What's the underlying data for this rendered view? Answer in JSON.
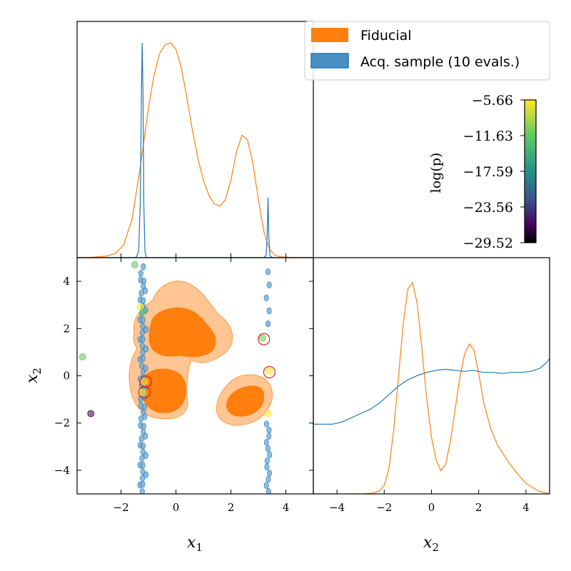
{
  "legend": {
    "items": [
      {
        "label": "Fiducial",
        "color": "#ff7f0e"
      },
      {
        "label": "Acq. sample (10 evals.)",
        "color": "#1f77b4"
      }
    ]
  },
  "colorbar": {
    "label": "log(p)",
    "ticks": [
      "−5.66",
      "−11.63",
      "−17.59",
      "−23.56",
      "−29.52"
    ],
    "range": [
      -29.52,
      -5.66
    ],
    "colormap": "viridis"
  },
  "chart_data": [
    {
      "type": "line",
      "panel": "marginal-x1",
      "xlim": [
        -3.6,
        5.0
      ],
      "series": [
        {
          "name": "Fiducial",
          "color": "#ff7f0e",
          "x": [
            -3.6,
            -3.0,
            -2.5,
            -2.2,
            -1.9,
            -1.6,
            -1.3,
            -1.0,
            -0.8,
            -0.6,
            -0.4,
            -0.2,
            0.0,
            0.2,
            0.4,
            0.6,
            0.8,
            1.0,
            1.2,
            1.4,
            1.6,
            1.8,
            2.0,
            2.2,
            2.4,
            2.6,
            2.8,
            3.0,
            3.2,
            3.4,
            3.6,
            3.8,
            4.2,
            5.0
          ],
          "y": [
            0.0,
            0.002,
            0.008,
            0.02,
            0.06,
            0.18,
            0.42,
            0.7,
            0.85,
            0.95,
            0.99,
            1.0,
            0.97,
            0.88,
            0.74,
            0.59,
            0.46,
            0.36,
            0.29,
            0.25,
            0.24,
            0.27,
            0.36,
            0.49,
            0.57,
            0.55,
            0.44,
            0.27,
            0.12,
            0.04,
            0.012,
            0.004,
            0.001,
            0.0
          ]
        },
        {
          "name": "Acq. sample (10 evals.)",
          "color": "#1f77b4",
          "x": [
            -3.6,
            -1.45,
            -1.36,
            -1.3,
            -1.26,
            -1.23,
            -1.2,
            -1.17,
            -1.13,
            -1.08,
            -1.0,
            3.2,
            3.28,
            3.32,
            3.35,
            3.38,
            3.42,
            3.5,
            5.0
          ],
          "y": [
            0.0,
            0.0,
            0.03,
            0.25,
            0.75,
            1.0,
            0.75,
            0.25,
            0.03,
            0.0,
            0.0,
            0.0,
            0.01,
            0.1,
            0.28,
            0.1,
            0.01,
            0.0,
            0.0
          ]
        }
      ]
    },
    {
      "type": "scatter",
      "panel": "joint-x1-x2",
      "xlabel": "x₁",
      "ylabel": "x₂",
      "xlim": [
        -3.6,
        5.0
      ],
      "ylim": [
        -5.0,
        5.0
      ],
      "xticks": [
        "−2",
        "0",
        "2",
        "4"
      ],
      "yticks": [
        "−4",
        "−2",
        "0",
        "2",
        "4"
      ],
      "fiducial_contours": [
        {
          "level": "outer",
          "x": [
            -1.5,
            -1.2,
            -0.5,
            0.3,
            1.0,
            1.7,
            2.2,
            2.7,
            3.3,
            3.8,
            3.9,
            3.7,
            3.2,
            2.5,
            1.8,
            1.5,
            1.3,
            1.2,
            0.9,
            0.4,
            -0.3,
            -0.9,
            -1.5,
            -1.7,
            -1.6,
            -1.3,
            -1.6,
            -1.6
          ],
          "y": [
            0.6,
            0.9,
            0.6,
            0.8,
            0.9,
            0.6,
            -0.1,
            -0.5,
            -0.7,
            -0.9,
            -1.6,
            -2.2,
            -2.6,
            -2.4,
            -1.9,
            -1.1,
            -0.7,
            -0.2,
            -1.2,
            -1.9,
            -2.0,
            -1.8,
            -1.5,
            -0.8,
            0.2,
            1.2,
            2.3,
            3.0
          ],
          "raw_top_path": true
        }
      ],
      "acq_points": [
        {
          "x": -3.4,
          "y": 0.8,
          "logp": -15.0
        },
        {
          "x": -3.1,
          "y": -1.6,
          "logp": -27.0
        },
        {
          "x": -1.5,
          "y": 4.7,
          "logp": -12.0
        },
        {
          "x": -1.3,
          "y": 2.9,
          "logp": -10.0
        },
        {
          "x": -1.2,
          "y": 2.7,
          "logp": -14.0
        },
        {
          "x": -1.15,
          "y": -0.25,
          "logp": -8.0
        },
        {
          "x": -1.2,
          "y": -0.7,
          "logp": -7.0
        },
        {
          "x": 3.15,
          "y": 1.6,
          "logp": -12.0
        },
        {
          "x": 3.4,
          "y": 0.2,
          "logp": -9.0
        },
        {
          "x": 3.35,
          "y": -1.6,
          "logp": -8.0
        }
      ],
      "highlighted": [
        {
          "x": -1.1,
          "y": -0.25
        },
        {
          "x": -1.15,
          "y": -0.7
        },
        {
          "x": 3.2,
          "y": 1.55
        },
        {
          "x": 3.4,
          "y": 0.15
        }
      ]
    },
    {
      "type": "line",
      "panel": "marginal-x2",
      "xlabel": "x₂",
      "xlim": [
        -5.0,
        5.0
      ],
      "xticks": [
        "−4",
        "−2",
        "0",
        "2",
        "4"
      ],
      "series": [
        {
          "name": "Fiducial",
          "color": "#ff7f0e",
          "x": [
            -5.0,
            -3.0,
            -2.5,
            -2.2,
            -2.0,
            -1.8,
            -1.6,
            -1.4,
            -1.2,
            -1.0,
            -0.8,
            -0.6,
            -0.4,
            -0.2,
            0.0,
            0.2,
            0.4,
            0.6,
            0.8,
            1.0,
            1.2,
            1.4,
            1.6,
            1.8,
            2.0,
            2.2,
            2.5,
            2.8,
            3.2,
            3.6,
            4.0,
            4.5,
            5.0
          ],
          "y": [
            0.0,
            0.0,
            0.003,
            0.015,
            0.04,
            0.12,
            0.3,
            0.55,
            0.8,
            0.97,
            1.0,
            0.9,
            0.68,
            0.45,
            0.27,
            0.16,
            0.11,
            0.14,
            0.25,
            0.4,
            0.55,
            0.66,
            0.71,
            0.68,
            0.57,
            0.44,
            0.31,
            0.23,
            0.16,
            0.1,
            0.05,
            0.015,
            0.0
          ]
        },
        {
          "name": "Acq. sample (10 evals.)",
          "color": "#1f77b4",
          "x": [
            -5.0,
            -4.6,
            -4.2,
            -3.8,
            -3.4,
            -3.0,
            -2.6,
            -2.2,
            -1.8,
            -1.4,
            -1.0,
            -0.6,
            -0.2,
            0.2,
            0.6,
            1.0,
            1.4,
            1.8,
            2.2,
            2.6,
            3.0,
            3.4,
            3.8,
            4.2,
            4.6,
            4.85,
            5.0
          ],
          "y": [
            0.33,
            0.33,
            0.33,
            0.34,
            0.36,
            0.38,
            0.4,
            0.43,
            0.47,
            0.51,
            0.54,
            0.56,
            0.575,
            0.585,
            0.59,
            0.585,
            0.58,
            0.585,
            0.575,
            0.575,
            0.57,
            0.575,
            0.575,
            0.58,
            0.595,
            0.62,
            0.64
          ]
        }
      ]
    }
  ]
}
